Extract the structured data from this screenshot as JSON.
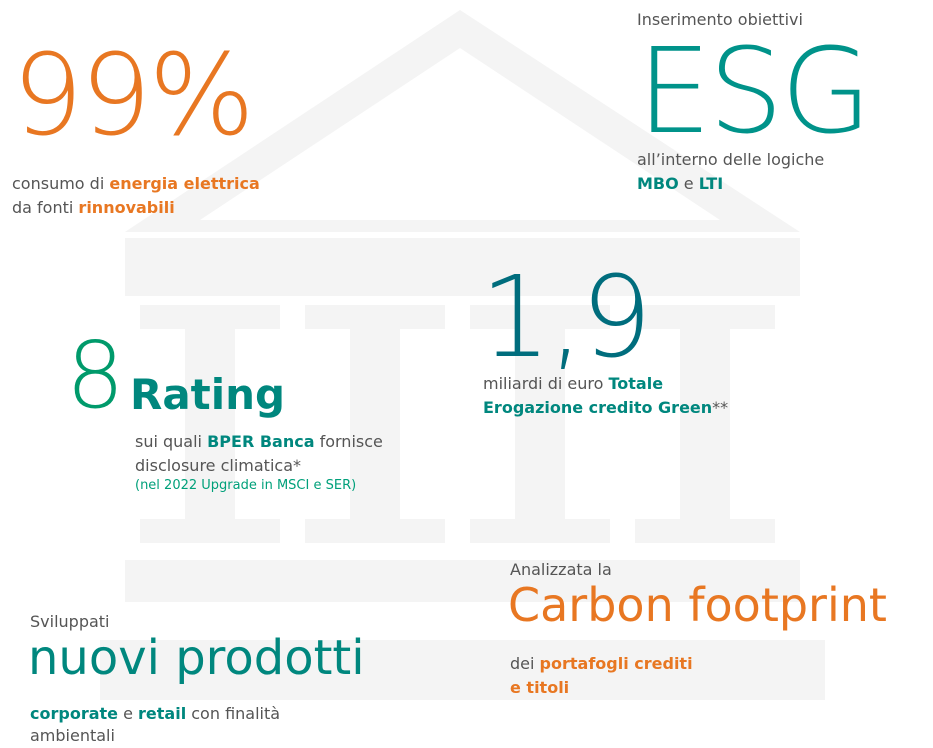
{
  "stats": [
    {
      "figure": "99%",
      "lines": [
        [
          "consumo di ",
          "energia elettrica"
        ],
        [
          "da fonti ",
          "rinnovabili"
        ]
      ]
    },
    {
      "intro": "Inserimento obiettivi",
      "figure": "ESG",
      "lines": [
        [
          "all’interno delle logiche"
        ],
        [
          "MBO",
          " e ",
          "LTI"
        ]
      ]
    },
    {
      "figure": "1,9",
      "lines": [
        [
          "miliardi di euro ",
          "Totale"
        ],
        [
          "Erogazione credito Green",
          "**"
        ]
      ]
    },
    {
      "figure": "8",
      "headline": "Rating",
      "lines": [
        [
          "sui quali ",
          "BPER Banca",
          " fornisce"
        ],
        [
          "disclosure climatica*"
        ]
      ],
      "note": "(nel 2022 Upgrade in MSCI e SER)"
    },
    {
      "intro": "Analizzata la",
      "figure": "Carbon footprint",
      "lines": [
        [
          "dei ",
          "portafogli crediti"
        ],
        [
          "e titoli"
        ]
      ]
    },
    {
      "intro": "Sviluppati",
      "figure": "nuovi prodotti",
      "lines": [
        [
          "corporate",
          " e ",
          "retail",
          " con finalità"
        ],
        [
          "ambientali"
        ]
      ]
    }
  ]
}
